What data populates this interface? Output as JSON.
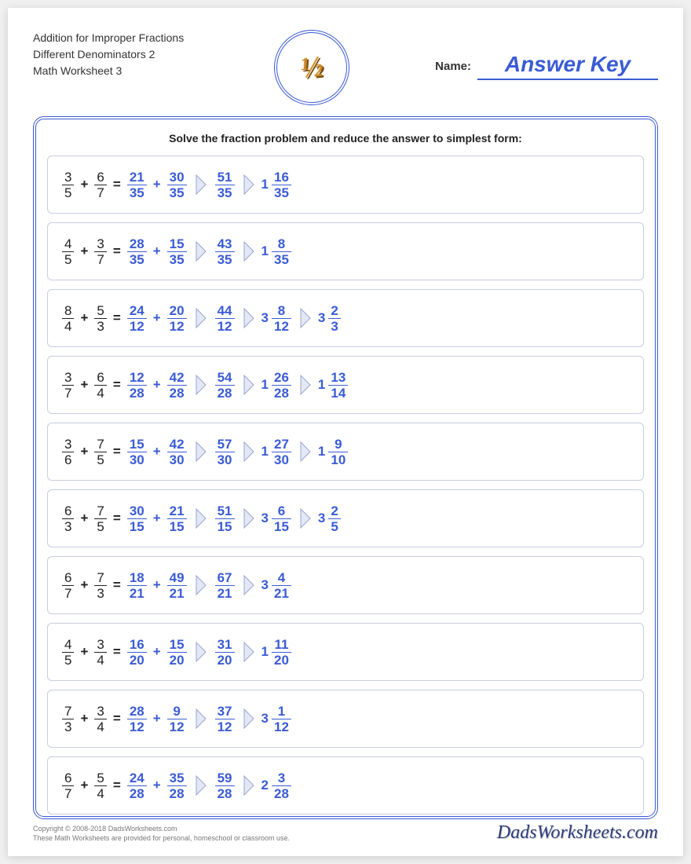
{
  "header": {
    "title_line1": "Addition for Improper Fractions",
    "title_line2": "Different Denominators 2",
    "title_line3": "Math Worksheet 3",
    "badge_text": "½",
    "name_label": "Name:",
    "answer_key": "Answer Key"
  },
  "instruction": "Solve the fraction problem and reduce the answer to simplest form:",
  "colors": {
    "accent": "#3a5bd4",
    "text": "#222222",
    "row_border": "#c8cde0",
    "arrow_fill": "#e4e8f5",
    "arrow_stroke": "#9aa5d0",
    "badge_gold": "#c98a2b"
  },
  "problems": [
    {
      "a": {
        "n": "3",
        "d": "5"
      },
      "b": {
        "n": "6",
        "d": "7"
      },
      "steps": [
        {
          "type": "sum",
          "a": {
            "n": "21",
            "d": "35"
          },
          "b": {
            "n": "30",
            "d": "35"
          }
        },
        {
          "type": "frac",
          "n": "51",
          "d": "35"
        },
        {
          "type": "mixed",
          "w": "1",
          "n": "16",
          "d": "35"
        }
      ]
    },
    {
      "a": {
        "n": "4",
        "d": "5"
      },
      "b": {
        "n": "3",
        "d": "7"
      },
      "steps": [
        {
          "type": "sum",
          "a": {
            "n": "28",
            "d": "35"
          },
          "b": {
            "n": "15",
            "d": "35"
          }
        },
        {
          "type": "frac",
          "n": "43",
          "d": "35"
        },
        {
          "type": "mixed",
          "w": "1",
          "n": "8",
          "d": "35"
        }
      ]
    },
    {
      "a": {
        "n": "8",
        "d": "4"
      },
      "b": {
        "n": "5",
        "d": "3"
      },
      "steps": [
        {
          "type": "sum",
          "a": {
            "n": "24",
            "d": "12"
          },
          "b": {
            "n": "20",
            "d": "12"
          }
        },
        {
          "type": "frac",
          "n": "44",
          "d": "12"
        },
        {
          "type": "mixed",
          "w": "3",
          "n": "8",
          "d": "12"
        },
        {
          "type": "mixed",
          "w": "3",
          "n": "2",
          "d": "3"
        }
      ]
    },
    {
      "a": {
        "n": "3",
        "d": "7"
      },
      "b": {
        "n": "6",
        "d": "4"
      },
      "steps": [
        {
          "type": "sum",
          "a": {
            "n": "12",
            "d": "28"
          },
          "b": {
            "n": "42",
            "d": "28"
          }
        },
        {
          "type": "frac",
          "n": "54",
          "d": "28"
        },
        {
          "type": "mixed",
          "w": "1",
          "n": "26",
          "d": "28"
        },
        {
          "type": "mixed",
          "w": "1",
          "n": "13",
          "d": "14"
        }
      ]
    },
    {
      "a": {
        "n": "3",
        "d": "6"
      },
      "b": {
        "n": "7",
        "d": "5"
      },
      "steps": [
        {
          "type": "sum",
          "a": {
            "n": "15",
            "d": "30"
          },
          "b": {
            "n": "42",
            "d": "30"
          }
        },
        {
          "type": "frac",
          "n": "57",
          "d": "30"
        },
        {
          "type": "mixed",
          "w": "1",
          "n": "27",
          "d": "30"
        },
        {
          "type": "mixed",
          "w": "1",
          "n": "9",
          "d": "10"
        }
      ]
    },
    {
      "a": {
        "n": "6",
        "d": "3"
      },
      "b": {
        "n": "7",
        "d": "5"
      },
      "steps": [
        {
          "type": "sum",
          "a": {
            "n": "30",
            "d": "15"
          },
          "b": {
            "n": "21",
            "d": "15"
          }
        },
        {
          "type": "frac",
          "n": "51",
          "d": "15"
        },
        {
          "type": "mixed",
          "w": "3",
          "n": "6",
          "d": "15"
        },
        {
          "type": "mixed",
          "w": "3",
          "n": "2",
          "d": "5"
        }
      ]
    },
    {
      "a": {
        "n": "6",
        "d": "7"
      },
      "b": {
        "n": "7",
        "d": "3"
      },
      "steps": [
        {
          "type": "sum",
          "a": {
            "n": "18",
            "d": "21"
          },
          "b": {
            "n": "49",
            "d": "21"
          }
        },
        {
          "type": "frac",
          "n": "67",
          "d": "21"
        },
        {
          "type": "mixed",
          "w": "3",
          "n": "4",
          "d": "21"
        }
      ]
    },
    {
      "a": {
        "n": "4",
        "d": "5"
      },
      "b": {
        "n": "3",
        "d": "4"
      },
      "steps": [
        {
          "type": "sum",
          "a": {
            "n": "16",
            "d": "20"
          },
          "b": {
            "n": "15",
            "d": "20"
          }
        },
        {
          "type": "frac",
          "n": "31",
          "d": "20"
        },
        {
          "type": "mixed",
          "w": "1",
          "n": "11",
          "d": "20"
        }
      ]
    },
    {
      "a": {
        "n": "7",
        "d": "3"
      },
      "b": {
        "n": "3",
        "d": "4"
      },
      "steps": [
        {
          "type": "sum",
          "a": {
            "n": "28",
            "d": "12"
          },
          "b": {
            "n": "9",
            "d": "12"
          }
        },
        {
          "type": "frac",
          "n": "37",
          "d": "12"
        },
        {
          "type": "mixed",
          "w": "3",
          "n": "1",
          "d": "12"
        }
      ]
    },
    {
      "a": {
        "n": "6",
        "d": "7"
      },
      "b": {
        "n": "5",
        "d": "4"
      },
      "steps": [
        {
          "type": "sum",
          "a": {
            "n": "24",
            "d": "28"
          },
          "b": {
            "n": "35",
            "d": "28"
          }
        },
        {
          "type": "frac",
          "n": "59",
          "d": "28"
        },
        {
          "type": "mixed",
          "w": "2",
          "n": "3",
          "d": "28"
        }
      ]
    }
  ],
  "footer": {
    "copyright_line1": "Copyright © 2008-2018 DadsWorksheets.com",
    "copyright_line2": "These Math Worksheets are provided for personal, homeschool or classroom use.",
    "brand": "DadsWorksheets.com"
  }
}
